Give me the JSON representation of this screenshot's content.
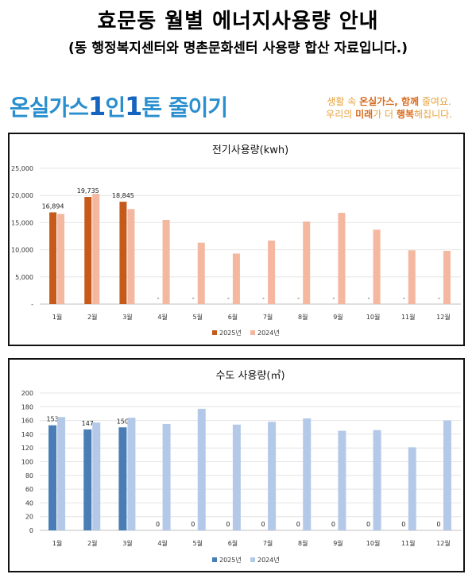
{
  "header": {
    "title": "효문동 월별 에너지사용량 안내",
    "subtitle": "(동 행정복지센터와 명촌문화센터 사용량 합산 자료입니다.)"
  },
  "banner": {
    "left_prefix": "온실가스",
    "left_num1": "1",
    "left_mid": "인",
    "left_num2": "1",
    "left_suffix": "톤 줄이기",
    "right_line1_a": "생활 속 ",
    "right_line1_b": "온실가스, 함께",
    "right_line1_c": " 줄여요.",
    "right_line2_a": "우리의 ",
    "right_line2_b": "미래",
    "right_line2_c": "가 더 ",
    "right_line2_d": "행복",
    "right_line2_e": "해집니다."
  },
  "chart_data": [
    {
      "type": "bar",
      "title": "전기사용량(kwh)",
      "categories": [
        "1월",
        "2월",
        "3월",
        "4월",
        "5월",
        "6월",
        "7월",
        "8월",
        "9월",
        "10월",
        "11월",
        "12월"
      ],
      "ylim": [
        0,
        25000
      ],
      "ytick_labels": [
        "-",
        "5,000",
        "10,000",
        "15,000",
        "20,000",
        "25,000"
      ],
      "grid": true,
      "legend": "bottom",
      "series": [
        {
          "name": "2025년",
          "color": "#c55a1b",
          "values": [
            16894,
            19735,
            18845,
            0,
            0,
            0,
            0,
            0,
            0,
            0,
            0,
            0
          ],
          "labels": [
            "16,894",
            "19,735",
            "18,845",
            "-",
            "-",
            "-",
            "-",
            "-",
            "-",
            "-",
            "-",
            "-"
          ]
        },
        {
          "name": "2024년",
          "color": "#f4b7a0",
          "values": [
            16600,
            20300,
            17500,
            15500,
            11300,
            9300,
            11700,
            15200,
            16800,
            13700,
            9900,
            9800
          ]
        }
      ]
    },
    {
      "type": "bar",
      "title": "수도 사용량(㎥)",
      "categories": [
        "1월",
        "2월",
        "3월",
        "4월",
        "5월",
        "6월",
        "7월",
        "8월",
        "9월",
        "10월",
        "11월",
        "12월"
      ],
      "ylim": [
        0,
        200
      ],
      "ytick_labels": [
        "0",
        "20",
        "40",
        "60",
        "80",
        "100",
        "120",
        "140",
        "160",
        "180",
        "200"
      ],
      "grid": true,
      "legend": "bottom",
      "series": [
        {
          "name": "2025년",
          "color": "#4a7db5",
          "values": [
            153,
            147,
            150,
            0,
            0,
            0,
            0,
            0,
            0,
            0,
            0,
            0
          ],
          "labels": [
            "153",
            "147",
            "150",
            "0",
            "0",
            "0",
            "0",
            "0",
            "0",
            "0",
            "0",
            "0"
          ]
        },
        {
          "name": "2024년",
          "color": "#b4c9e8",
          "values": [
            165,
            157,
            164,
            155,
            177,
            154,
            158,
            163,
            145,
            146,
            121,
            160
          ]
        }
      ]
    }
  ]
}
